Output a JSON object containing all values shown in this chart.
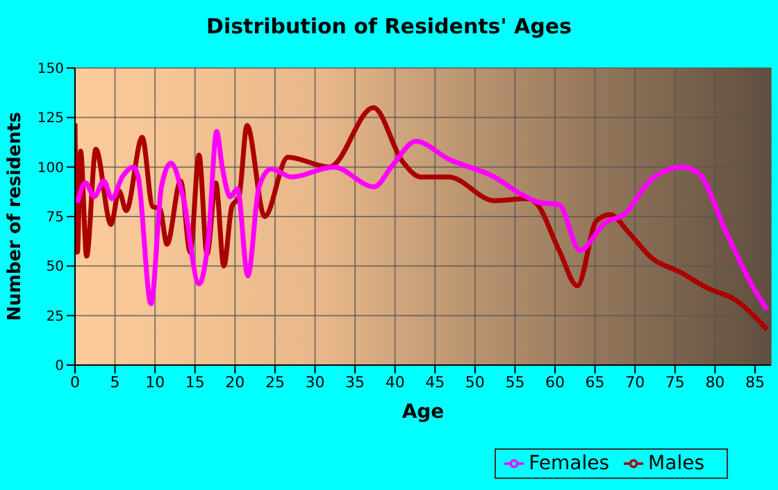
{
  "chart_data": {
    "type": "line",
    "title": "Distribution of Residents' Ages",
    "xlabel": "Age",
    "ylabel": "Number of residents",
    "xlim": [
      0,
      87
    ],
    "ylim": [
      0,
      150
    ],
    "xticks": [
      0,
      5,
      10,
      15,
      20,
      25,
      30,
      35,
      40,
      45,
      50,
      55,
      60,
      65,
      70,
      75,
      80,
      85
    ],
    "yticks": [
      0,
      25,
      50,
      75,
      100,
      125,
      150
    ],
    "grid": true,
    "legend": "bottom right",
    "marker": "none",
    "line_style": "solid",
    "series": [
      {
        "name": "Males",
        "color": "#aa0000",
        "x": [
          0,
          0.3,
          0.7,
          1.45,
          2.6,
          4.5,
          5.5,
          6.4,
          8.4,
          9.7,
          10.6,
          11.5,
          13.2,
          14.4,
          15.5,
          16.5,
          17.6,
          18.6,
          19.6,
          20.5,
          21.5,
          23.7,
          26.6,
          31.8,
          37.3,
          40.9,
          43.2,
          46.7,
          52.4,
          56.5,
          57.6,
          60.5,
          62.8,
          65.2,
          66.9,
          69.2,
          72.1,
          75.6,
          79,
          82.5,
          86.5
        ],
        "values": [
          122,
          57,
          108,
          55,
          109,
          71,
          88,
          78,
          115,
          80,
          79,
          61,
          93,
          57,
          106,
          56,
          92,
          50,
          80,
          85,
          121,
          75,
          105,
          100,
          130,
          103,
          95,
          95,
          83,
          84,
          82,
          58,
          40,
          73,
          76,
          67,
          54,
          47,
          39,
          33,
          18
        ]
      },
      {
        "name": "Females",
        "color": "#ff00ff",
        "x": [
          0.3,
          1.3,
          2.4,
          3.6,
          4.6,
          5.9,
          7.3,
          7.9,
          9.5,
          10.8,
          12,
          13.5,
          15.5,
          16.7,
          17.7,
          18.4,
          19.4,
          20.3,
          21.6,
          23,
          24.5,
          27.1,
          32.3,
          37.4,
          39.7,
          42.6,
          46.7,
          52.4,
          55.9,
          58.2,
          60.5,
          63.1,
          66.3,
          68.6,
          72.1,
          75.9,
          77.9,
          81.4,
          84.8,
          86.5
        ],
        "values": [
          82,
          92,
          85,
          93,
          84,
          95,
          100,
          95,
          31,
          90,
          102,
          85,
          41,
          65,
          118,
          100,
          85,
          89,
          45,
          90,
          99,
          95,
          100,
          90,
          101,
          113,
          104,
          95,
          86,
          82,
          81,
          58,
          72,
          76,
          94,
          100,
          97,
          67,
          39,
          28
        ]
      }
    ]
  }
}
